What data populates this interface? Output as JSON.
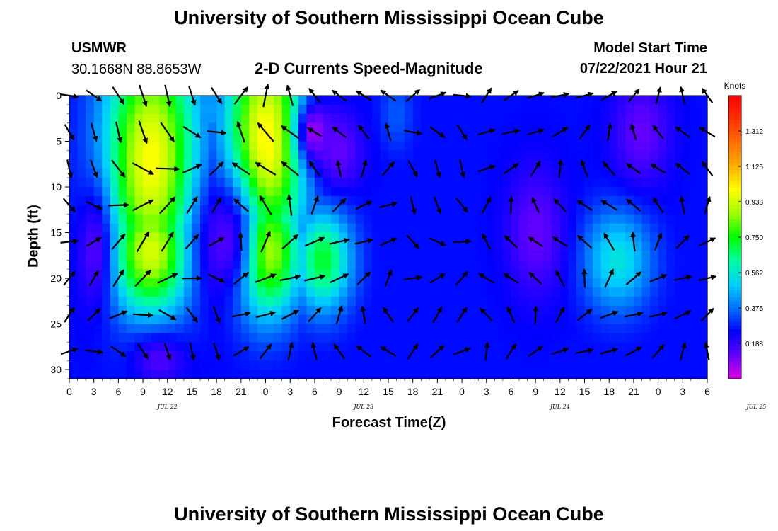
{
  "page": {
    "title_top": "University of Southern Mississippi Ocean Cube",
    "title_bottom": "University of Southern Mississippi Ocean Cube",
    "station_id": "USMWR",
    "station_coords": "30.1668N  88.8653W",
    "plot_title": "2-D Currents Speed-Magnitude",
    "model_start_label": "Model Start Time",
    "model_start_value": "07/22/2021 Hour 21"
  },
  "chart_data": {
    "type": "heatmap",
    "title": "2-D Currents Speed-Magnitude",
    "xlabel": "Forecast Time(Z)",
    "ylabel": "Depth (ft)",
    "x_tick_labels": [
      "0",
      "3",
      "6",
      "9",
      "12",
      "15",
      "18",
      "21",
      "0",
      "3",
      "6",
      "9",
      "12",
      "15",
      "18",
      "21",
      "0",
      "3",
      "6",
      "9",
      "12",
      "15",
      "18",
      "21",
      "0",
      "3",
      "6"
    ],
    "date_labels": [
      {
        "label": "JUL 22",
        "x_hours": 12
      },
      {
        "label": "JUL 23",
        "x_hours": 36
      },
      {
        "label": "JUL 24",
        "x_hours": 60
      },
      {
        "label": "JUL 25",
        "x_hours": 84
      }
    ],
    "x_range_hours": [
      0,
      78
    ],
    "y_ticks": [
      0,
      5,
      10,
      15,
      20,
      25,
      30
    ],
    "ylim": [
      0,
      31
    ],
    "y_inverted": true,
    "colorbar": {
      "title": "Knots",
      "ticks": [
        "1.312",
        "1.125",
        "0.938",
        "0.750",
        "0.562",
        "0.375",
        "0.188"
      ],
      "range": [
        0,
        1.5
      ],
      "colors": [
        "#e000e0",
        "#6000ff",
        "#0000ff",
        "#0070ff",
        "#00d0ff",
        "#00ffa0",
        "#00ff00",
        "#a0ff00",
        "#ffff00",
        "#ffb000",
        "#ff7000",
        "#ff3000",
        "#ff0000"
      ]
    },
    "speed_blobs": [
      {
        "x_hours": 10,
        "depth_ft": 7,
        "sx": 4,
        "sy": 10,
        "value": 1.0
      },
      {
        "x_hours": 10,
        "depth_ft": 17,
        "sx": 3.5,
        "sy": 5,
        "value": 0.95
      },
      {
        "x_hours": 24,
        "depth_ft": 5,
        "sx": 3.5,
        "sy": 9,
        "value": 1.02
      },
      {
        "x_hours": 24,
        "depth_ft": 17,
        "sx": 3,
        "sy": 5,
        "value": 0.95
      },
      {
        "x_hours": 31,
        "depth_ft": 18,
        "sx": 2.5,
        "sy": 4,
        "value": 0.72
      },
      {
        "x_hours": 67,
        "depth_ft": 18,
        "sx": 3,
        "sy": 4,
        "value": 0.55
      },
      {
        "x_hours": 17,
        "depth_ft": 1.5,
        "sx": 1.5,
        "sy": 3,
        "value": 0.45
      },
      {
        "x_hours": 40,
        "depth_ft": 2,
        "sx": 1.5,
        "sy": 3,
        "value": 0.35
      }
    ],
    "slow_spots": [
      {
        "x_hours": 30,
        "depth_ft": 4,
        "sx": 1.5,
        "sy": 2.5,
        "value": 0.05
      },
      {
        "x_hours": 33,
        "depth_ft": 6,
        "sx": 2,
        "sy": 3,
        "value": 0.12
      },
      {
        "x_hours": 57,
        "depth_ft": 15,
        "sx": 2.5,
        "sy": 5,
        "value": 0.12
      },
      {
        "x_hours": 70,
        "depth_ft": 4,
        "sx": 2.5,
        "sy": 4,
        "value": 0.12
      },
      {
        "x_hours": 3,
        "depth_ft": 17,
        "sx": 1.5,
        "sy": 5,
        "value": 0.15
      },
      {
        "x_hours": 19,
        "depth_ft": 16,
        "sx": 2.5,
        "sy": 5,
        "value": 0.15
      },
      {
        "x_hours": 11,
        "depth_ft": 29,
        "sx": 2.5,
        "sy": 2,
        "value": 0.15
      }
    ],
    "vector_rows_depth_ft": [
      0,
      4,
      8,
      12,
      16,
      20,
      24,
      28
    ]
  }
}
